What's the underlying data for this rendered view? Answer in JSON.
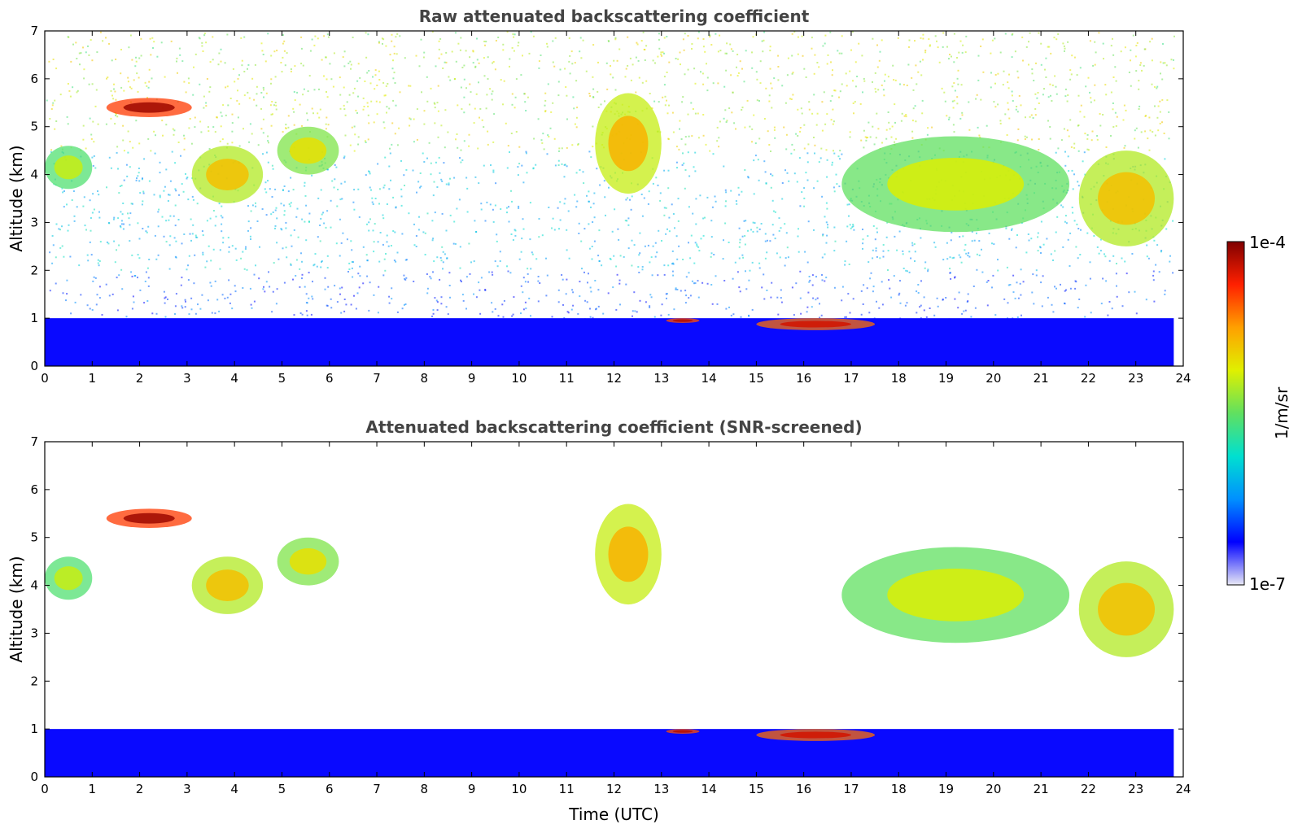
{
  "chart_data": [
    {
      "type": "heatmap",
      "title": "Raw attenuated backscattering coefficient",
      "xlabel": "",
      "ylabel": "Altitude (km)",
      "xlim": [
        0,
        24
      ],
      "ylim": [
        0,
        7
      ],
      "x_ticks": [
        0,
        1,
        2,
        3,
        4,
        5,
        6,
        7,
        8,
        9,
        10,
        11,
        12,
        13,
        14,
        15,
        16,
        17,
        18,
        19,
        20,
        21,
        22,
        23,
        24
      ],
      "y_ticks": [
        0,
        1,
        2,
        3,
        4,
        5,
        6,
        7
      ],
      "data_end_time": 23.8,
      "features": [
        {
          "kind": "boundary-layer",
          "x": [
            0,
            23.8
          ],
          "top_km": 1.0,
          "level": 0.12
        },
        {
          "kind": "cloud",
          "x": [
            1.3,
            3.1
          ],
          "y": [
            5.2,
            5.6
          ],
          "level": 0.97
        },
        {
          "kind": "cloud",
          "x": [
            0.0,
            1.0
          ],
          "y": [
            3.7,
            4.6
          ],
          "level": 0.6
        },
        {
          "kind": "cloud",
          "x": [
            3.1,
            4.6
          ],
          "y": [
            3.4,
            4.6
          ],
          "level": 0.7
        },
        {
          "kind": "cloud",
          "x": [
            4.9,
            6.2
          ],
          "y": [
            4.0,
            5.0
          ],
          "level": 0.65
        },
        {
          "kind": "cloud",
          "x": [
            11.6,
            13.0
          ],
          "y": [
            3.6,
            5.7
          ],
          "level": 0.72
        },
        {
          "kind": "cloud",
          "x": [
            13.1,
            13.8
          ],
          "y": [
            0.9,
            1.0
          ],
          "level": 0.95
        },
        {
          "kind": "cloud",
          "x": [
            15.0,
            17.5
          ],
          "y": [
            0.75,
            1.0
          ],
          "level": 0.92
        },
        {
          "kind": "cloud",
          "x": [
            16.8,
            21.6
          ],
          "y": [
            2.8,
            4.8
          ],
          "level": 0.62
        },
        {
          "kind": "cloud",
          "x": [
            21.8,
            23.8
          ],
          "y": [
            2.5,
            4.5
          ],
          "level": 0.7
        }
      ]
    },
    {
      "type": "heatmap",
      "title": "Attenuated backscattering coefficient (SNR-screened)",
      "xlabel": "Time (UTC)",
      "ylabel": "Altitude (km)",
      "xlim": [
        0,
        24
      ],
      "ylim": [
        0,
        7
      ],
      "x_ticks": [
        0,
        1,
        2,
        3,
        4,
        5,
        6,
        7,
        8,
        9,
        10,
        11,
        12,
        13,
        14,
        15,
        16,
        17,
        18,
        19,
        20,
        21,
        22,
        23,
        24
      ],
      "y_ticks": [
        0,
        1,
        2,
        3,
        4,
        5,
        6,
        7
      ],
      "data_end_time": 23.8,
      "features": [
        {
          "kind": "boundary-layer",
          "x": [
            0,
            23.8
          ],
          "top_km": 1.0,
          "level": 0.12
        },
        {
          "kind": "cloud",
          "x": [
            1.3,
            3.1
          ],
          "y": [
            5.2,
            5.6
          ],
          "level": 0.97
        },
        {
          "kind": "cloud",
          "x": [
            0.0,
            1.0
          ],
          "y": [
            3.7,
            4.6
          ],
          "level": 0.6
        },
        {
          "kind": "cloud",
          "x": [
            3.1,
            4.6
          ],
          "y": [
            3.4,
            4.6
          ],
          "level": 0.7
        },
        {
          "kind": "cloud",
          "x": [
            4.9,
            6.2
          ],
          "y": [
            4.0,
            5.0
          ],
          "level": 0.65
        },
        {
          "kind": "cloud",
          "x": [
            11.6,
            13.0
          ],
          "y": [
            3.6,
            5.7
          ],
          "level": 0.72
        },
        {
          "kind": "cloud",
          "x": [
            13.1,
            13.8
          ],
          "y": [
            0.9,
            1.0
          ],
          "level": 0.95
        },
        {
          "kind": "cloud",
          "x": [
            15.0,
            17.5
          ],
          "y": [
            0.75,
            1.0
          ],
          "level": 0.92
        },
        {
          "kind": "cloud",
          "x": [
            16.8,
            21.6
          ],
          "y": [
            2.8,
            4.8
          ],
          "level": 0.62
        },
        {
          "kind": "cloud",
          "x": [
            21.8,
            23.8
          ],
          "y": [
            2.5,
            4.5
          ],
          "level": 0.7
        }
      ]
    }
  ],
  "colorbar": {
    "label": "1/m/sr",
    "max_label": "1e-4",
    "min_label": "1e-7",
    "scale": "log",
    "range": [
      1e-07,
      0.0001
    ],
    "colormap": "jet",
    "stops": [
      "#e8e8f5",
      "#0000ff",
      "#0090ff",
      "#00e0d0",
      "#60e060",
      "#e0f000",
      "#ffa000",
      "#ff2000",
      "#800000"
    ]
  }
}
